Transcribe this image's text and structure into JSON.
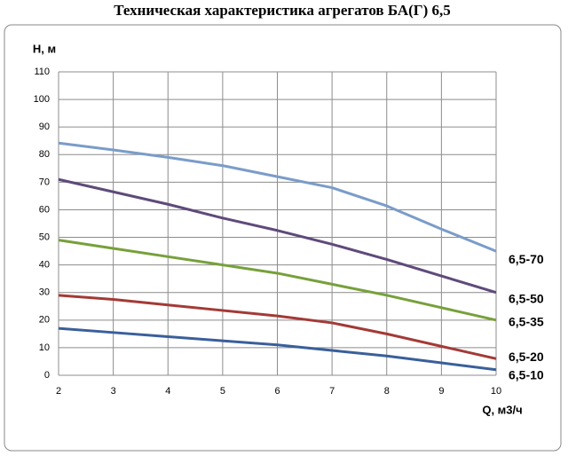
{
  "chart_data": {
    "type": "line",
    "title": "Техническая характеристика агрегатов БА(Г) 6,5",
    "y_label": "H, м",
    "x_label": "Q, м3/ч",
    "x": [
      2,
      3,
      4,
      5,
      6,
      7,
      8,
      9,
      10
    ],
    "xlim": [
      2,
      10
    ],
    "xticks": [
      2,
      3,
      4,
      5,
      6,
      7,
      8,
      9,
      10
    ],
    "ylim": [
      0,
      110
    ],
    "yticks": [
      0,
      10,
      20,
      30,
      40,
      50,
      60,
      70,
      80,
      90,
      100,
      110
    ],
    "grid": true,
    "series": [
      {
        "name": "6,5-70",
        "color": "#7a9cc9",
        "values": [
          84.2,
          81.7,
          79,
          76,
          72,
          68,
          61.4,
          53,
          45
        ]
      },
      {
        "name": "6,5-50",
        "color": "#5f4a7b",
        "values": [
          71,
          66.5,
          62,
          57,
          52.5,
          47.5,
          42,
          36,
          30
        ]
      },
      {
        "name": "6,5-35",
        "color": "#77a03b",
        "values": [
          49,
          46,
          43,
          40,
          37,
          33,
          29,
          24.5,
          20
        ]
      },
      {
        "name": "6,5-20",
        "color": "#a33a36",
        "values": [
          29,
          27.5,
          25.5,
          23.5,
          21.5,
          19,
          15,
          10.5,
          6
        ]
      },
      {
        "name": "6,5-10",
        "color": "#3a5f9a",
        "values": [
          17,
          15.5,
          14,
          12.5,
          11,
          9,
          7,
          4.5,
          2
        ]
      }
    ]
  }
}
